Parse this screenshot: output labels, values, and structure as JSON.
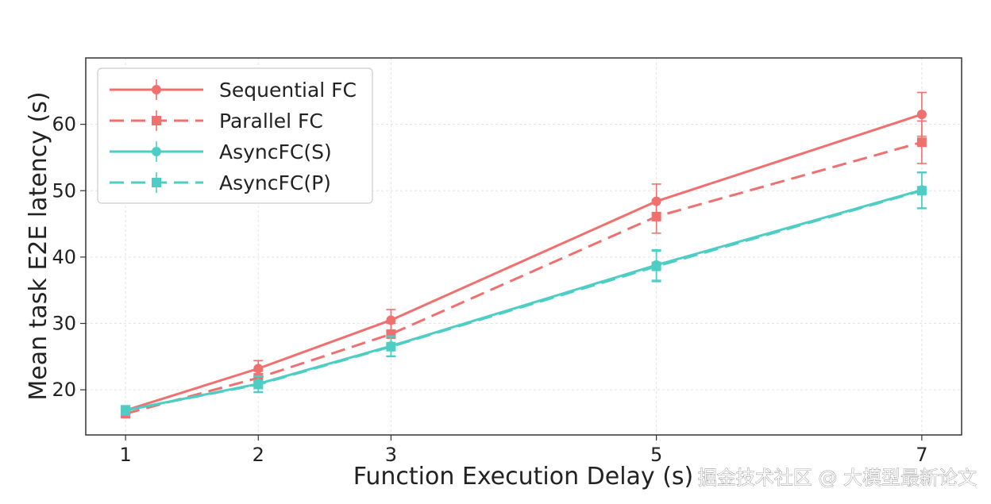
{
  "chart_data": {
    "type": "line",
    "title": "",
    "xlabel": "Function Execution Delay (s)",
    "ylabel": "Mean task E2E latency (s)",
    "x": [
      1,
      2,
      3,
      5,
      7
    ],
    "xticks": [
      "1",
      "2",
      "3",
      "5",
      "7"
    ],
    "yticks": [
      "20",
      "30",
      "40",
      "50",
      "60"
    ],
    "xlim": [
      0.7,
      7.3
    ],
    "ylim": [
      13.2,
      70
    ],
    "grid": true,
    "legend_position": "top-left",
    "series": [
      {
        "name": "Sequential FC",
        "values": [
          16.9,
          23.2,
          30.5,
          48.4,
          61.5
        ],
        "errors": [
          0.5,
          1.2,
          1.6,
          2.6,
          3.3
        ],
        "color": "#f07070",
        "dash": "solid",
        "marker": "circle"
      },
      {
        "name": "Parallel FC",
        "values": [
          16.4,
          21.8,
          28.4,
          46.1,
          57.3
        ],
        "errors": [
          0.5,
          1.0,
          1.6,
          2.5,
          3.2
        ],
        "color": "#f07070",
        "dash": "dashed",
        "marker": "square"
      },
      {
        "name": "AsyncFC(S)",
        "values": [
          16.9,
          20.9,
          26.6,
          38.8,
          50.1
        ],
        "errors": [
          0.7,
          1.2,
          1.5,
          2.3,
          2.7
        ],
        "color": "#4ecdc4",
        "dash": "solid",
        "marker": "circle"
      },
      {
        "name": "AsyncFC(P)",
        "values": [
          16.9,
          20.8,
          26.5,
          38.6,
          50.0
        ],
        "errors": [
          0.7,
          1.2,
          1.5,
          2.3,
          2.7
        ],
        "color": "#4ecdc4",
        "dash": "dashed",
        "marker": "square"
      }
    ]
  },
  "watermark": "掘金技术社区 @ 大模型最新论文"
}
